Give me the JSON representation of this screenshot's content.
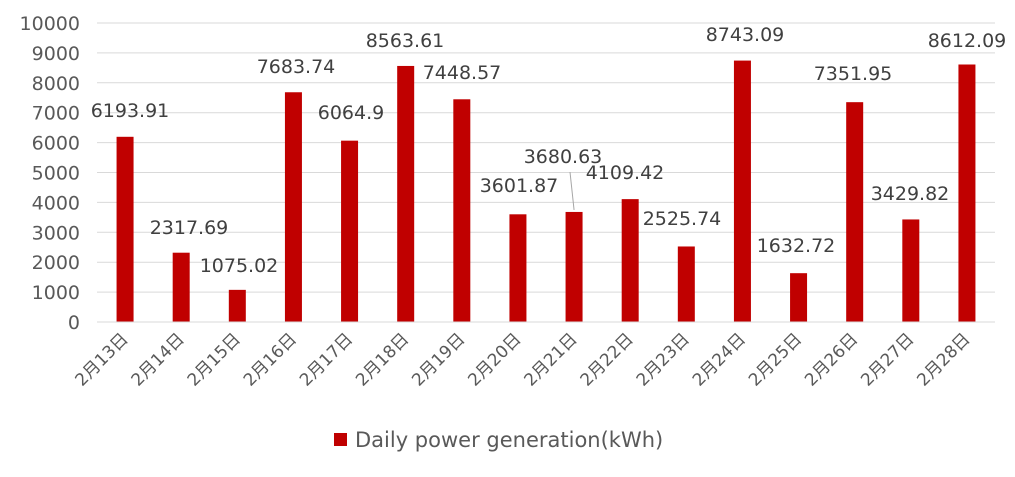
{
  "chart_data": {
    "type": "bar",
    "categories": [
      "2月13日",
      "2月14日",
      "2月15日",
      "2月16日",
      "2月17日",
      "2月18日",
      "2月19日",
      "2月20日",
      "2月21日",
      "2月22日",
      "2月23日",
      "2月24日",
      "2月25日",
      "2月26日",
      "2月27日",
      "2月28日"
    ],
    "series": [
      {
        "name": "Daily power generation(kWh)",
        "color": "#C00000",
        "values": [
          6193.91,
          2317.69,
          1075.02,
          7683.74,
          6064.9,
          8563.61,
          7448.57,
          3601.87,
          3680.63,
          4109.42,
          2525.74,
          8743.09,
          1632.72,
          7351.95,
          3429.82,
          8612.09
        ]
      }
    ],
    "data_labels": [
      "6193.91",
      "2317.69",
      "1075.02",
      "7683.74",
      "6064.9",
      "8563.61",
      "7448.57",
      "3601.87",
      "3680.63",
      "4109.42",
      "2525.74",
      "8743.09",
      "1632.72",
      "7351.95",
      "3429.82",
      "8612.09"
    ],
    "ylim": [
      0,
      10000
    ],
    "yticks": [
      "0",
      "1000",
      "2000",
      "3000",
      "4000",
      "5000",
      "6000",
      "7000",
      "8000",
      "9000",
      "10000"
    ],
    "grid": true,
    "legend_position": "bottom"
  }
}
